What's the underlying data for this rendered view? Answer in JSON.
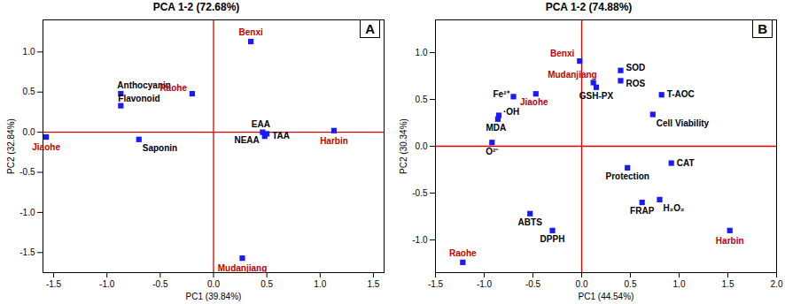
{
  "chart_data": [
    {
      "type": "scatter",
      "title": "PCA 1-2 (72.68%)",
      "annotations": [
        "A"
      ],
      "x_label": "PC1 (39.84%)",
      "y_label": "PC2 (32.84%)",
      "xlim": [
        -1.6,
        1.6
      ],
      "ylim": [
        -1.75,
        1.4
      ],
      "xticks": [
        -1.5,
        {
          "value": -1,
          "label": "-1.0"
        },
        -0.5,
        {
          "value": 0,
          "label": "0.0"
        },
        0.5,
        {
          "value": 1,
          "label": "1.0"
        },
        1.5
      ],
      "yticks": [
        -1.5,
        {
          "value": -1,
          "label": "-1.0"
        },
        -0.5,
        {
          "value": 0,
          "label": "0.0"
        },
        0.5,
        {
          "value": 1,
          "label": "1.0"
        }
      ],
      "color": "#1a1aff",
      "marker": "square",
      "points": [
        {
          "label": "Benxi",
          "x": 0.35,
          "y": 1.13,
          "label_color": "#c00000"
        },
        {
          "label": "Raohe",
          "x": -0.2,
          "y": 0.48,
          "label_color": "#c00000"
        },
        {
          "label": "Jiaohe",
          "x": -1.57,
          "y": -0.06,
          "label_color": "#c00000"
        },
        {
          "label": "Harbin",
          "x": 1.13,
          "y": 0.02,
          "label_color": "#c00000"
        },
        {
          "label": "Mudanjiang",
          "x": 0.27,
          "y": -1.57,
          "label_color": "#c00000"
        },
        {
          "label": "Anthocyanin",
          "x": -0.87,
          "y": 0.48,
          "label_color": "#000000"
        },
        {
          "label": "Flavonoid",
          "x": -0.87,
          "y": 0.33,
          "label_color": "#000000"
        },
        {
          "label": "Saponin",
          "x": -0.7,
          "y": -0.09,
          "label_color": "#000000"
        },
        {
          "label": "EAA",
          "x": 0.46,
          "y": 0.0,
          "label_color": "#000000"
        },
        {
          "label": "NEAA",
          "x": 0.48,
          "y": -0.05,
          "label_color": "#000000"
        },
        {
          "label": "TAA",
          "x": 0.5,
          "y": -0.02,
          "label_color": "#000000"
        }
      ]
    },
    {
      "type": "scatter",
      "title": "PCA 1-2 (74.88%)",
      "annotations": [
        "B"
      ],
      "x_label": "PC1 (44.54%)",
      "y_label": "PC2 (30.34%)",
      "xlim": [
        -1.5,
        2.0
      ],
      "ylim": [
        -1.35,
        1.35
      ],
      "xticks": [
        -1.5,
        {
          "value": -1,
          "label": "-1.0"
        },
        -0.5,
        {
          "value": 0,
          "label": "0.0"
        },
        0.5,
        {
          "value": 1,
          "label": "1.0"
        },
        1.5,
        {
          "value": 2,
          "label": "2.0"
        }
      ],
      "yticks": [
        {
          "value": -1,
          "label": "-1.0"
        },
        -0.5,
        {
          "value": 0,
          "label": "0.0"
        },
        0.5,
        {
          "value": 1,
          "label": "1.0"
        }
      ],
      "color": "#1a1aff",
      "marker": "square",
      "points": [
        {
          "label": "Benxi",
          "x": -0.02,
          "y": 0.91,
          "label_color": "#c00000"
        },
        {
          "label": "Mudanjiang",
          "x": 0.12,
          "y": 0.68,
          "label_color": "#c00000"
        },
        {
          "label": "Jiaohe",
          "x": -0.47,
          "y": 0.56,
          "label_color": "#c00000"
        },
        {
          "label": "Harbin",
          "x": 1.52,
          "y": -0.9,
          "label_color": "#c00000"
        },
        {
          "label": "Raohe",
          "x": -1.22,
          "y": -1.24,
          "label_color": "#c00000"
        },
        {
          "label": "SOD",
          "x": 0.4,
          "y": 0.81,
          "label_color": "#000000"
        },
        {
          "label": "ROS",
          "x": 0.4,
          "y": 0.7,
          "label_color": "#000000"
        },
        {
          "label": "GSH-PX",
          "x": 0.15,
          "y": 0.63,
          "label_color": "#000000"
        },
        {
          "label": "T-AOC",
          "x": 0.82,
          "y": 0.55,
          "label_color": "#000000"
        },
        {
          "label": "Cell Viability",
          "x": 0.73,
          "y": 0.34,
          "label_color": "#000000"
        },
        {
          "label": "Fe²⁺",
          "x": -0.7,
          "y": 0.53,
          "label_color": "#000000"
        },
        {
          "label": "·OH",
          "x": -0.85,
          "y": 0.33,
          "label_color": "#000000"
        },
        {
          "label": "MDA",
          "x": -0.86,
          "y": 0.29,
          "label_color": "#000000"
        },
        {
          "label": "O²⁻",
          "x": -0.92,
          "y": 0.04,
          "label_color": "#000000"
        },
        {
          "label": "Protection",
          "x": 0.47,
          "y": -0.23,
          "label_color": "#000000"
        },
        {
          "label": "CAT",
          "x": 0.92,
          "y": -0.18,
          "label_color": "#000000"
        },
        {
          "label": "FRAP",
          "x": 0.62,
          "y": -0.6,
          "label_color": "#000000"
        },
        {
          "label": "H₂O₂",
          "x": 0.8,
          "y": -0.57,
          "label_color": "#000000"
        },
        {
          "label": "ABTS",
          "x": -0.53,
          "y": -0.72,
          "label_color": "#000000"
        },
        {
          "label": "DPPH",
          "x": -0.3,
          "y": -0.9,
          "label_color": "#000000"
        }
      ]
    }
  ]
}
